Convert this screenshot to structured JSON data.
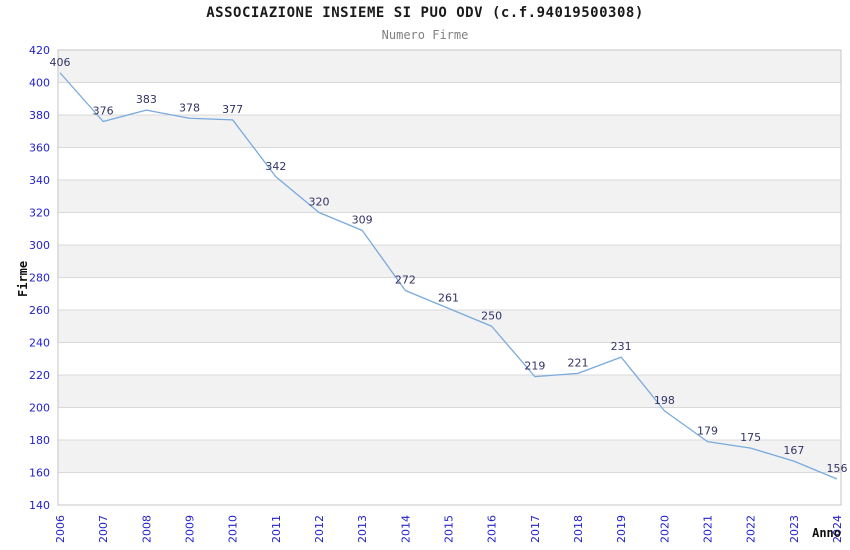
{
  "chart_data": {
    "type": "line",
    "title": "ASSOCIAZIONE INSIEME SI PUO ODV (c.f.94019500308)",
    "subtitle": "Numero Firme",
    "xlabel": "Anno",
    "ylabel": "Firme",
    "categories": [
      "2006",
      "2007",
      "2008",
      "2009",
      "2010",
      "2011",
      "2012",
      "2013",
      "2014",
      "2015",
      "2016",
      "2017",
      "2018",
      "2019",
      "2020",
      "2021",
      "2022",
      "2023",
      "2024"
    ],
    "values": [
      406,
      376,
      383,
      378,
      377,
      342,
      320,
      309,
      272,
      261,
      250,
      219,
      221,
      231,
      198,
      179,
      175,
      167,
      156
    ],
    "ylim": [
      140,
      420
    ],
    "ytick_step": 20,
    "grid": true,
    "legend_position": "none",
    "colors": {
      "line": "#79aadd",
      "tick_label": "#2222cc",
      "data_label": "#333366",
      "band_fill": "#f2f2f2",
      "gridline": "#d9d9d9",
      "plot_border": "#c6c6c6",
      "title": "#1a1a1a",
      "subtitle": "#808080",
      "axis_title": "#111111"
    }
  }
}
